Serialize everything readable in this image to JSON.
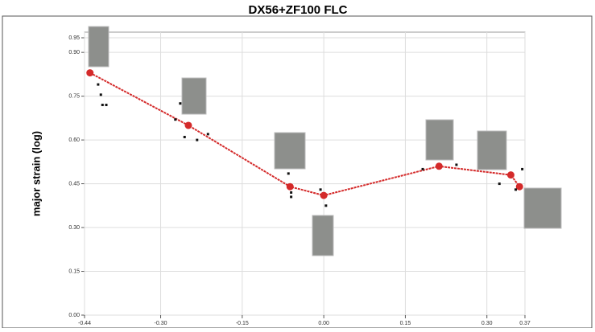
{
  "chart_data": {
    "type": "line",
    "title": "DX56+ZF100 FLC",
    "y_label": "major strain (log)",
    "xlim": [
      -0.44,
      0.37
    ],
    "ylim": [
      0,
      0.95
    ],
    "xticks": [
      {
        "value": -0.44,
        "label": "-0.44"
      },
      {
        "value": -0.3,
        "label": "-0.30"
      },
      {
        "value": -0.15,
        "label": "-0.15"
      },
      {
        "value": 0,
        "label": "0.00"
      },
      {
        "value": 0.15,
        "label": "0.15"
      },
      {
        "value": 0.3,
        "label": "0.30"
      },
      {
        "value": 0.37,
        "label": "0.37"
      }
    ],
    "yticks": [
      {
        "value": 0,
        "label": "0.00"
      },
      {
        "value": 0.15,
        "label": "0.15"
      },
      {
        "value": 0.3,
        "label": "0.30"
      },
      {
        "value": 0.45,
        "label": "0.45"
      },
      {
        "value": 0.6,
        "label": "0.60"
      },
      {
        "value": 0.75,
        "label": "0.75"
      },
      {
        "value": 0.9,
        "label": "0.90"
      },
      {
        "value": 0.95,
        "label": "0.95"
      }
    ],
    "grid": true,
    "series": [
      {
        "type": "line",
        "color": "#d42a2a",
        "x": [
          -0.43,
          -0.249,
          -0.062,
          0.0,
          0.212,
          0.344,
          0.36
        ],
        "values": [
          0.83,
          0.65,
          0.44,
          0.41,
          0.51,
          0.48,
          0.44
        ]
      },
      {
        "type": "scatter",
        "color": "#111111",
        "x": [
          -0.415,
          -0.41,
          -0.407,
          -0.4,
          -0.264,
          -0.273,
          -0.256,
          -0.233,
          -0.213,
          -0.065,
          -0.06,
          -0.06,
          -0.006,
          0.004,
          0.182,
          0.244,
          0.323,
          0.353,
          0.365
        ],
        "values": [
          0.79,
          0.755,
          0.72,
          0.72,
          0.725,
          0.67,
          0.61,
          0.6,
          0.62,
          0.485,
          0.42,
          0.405,
          0.43,
          0.375,
          0.5,
          0.515,
          0.45,
          0.43,
          0.5
        ]
      }
    ]
  }
}
